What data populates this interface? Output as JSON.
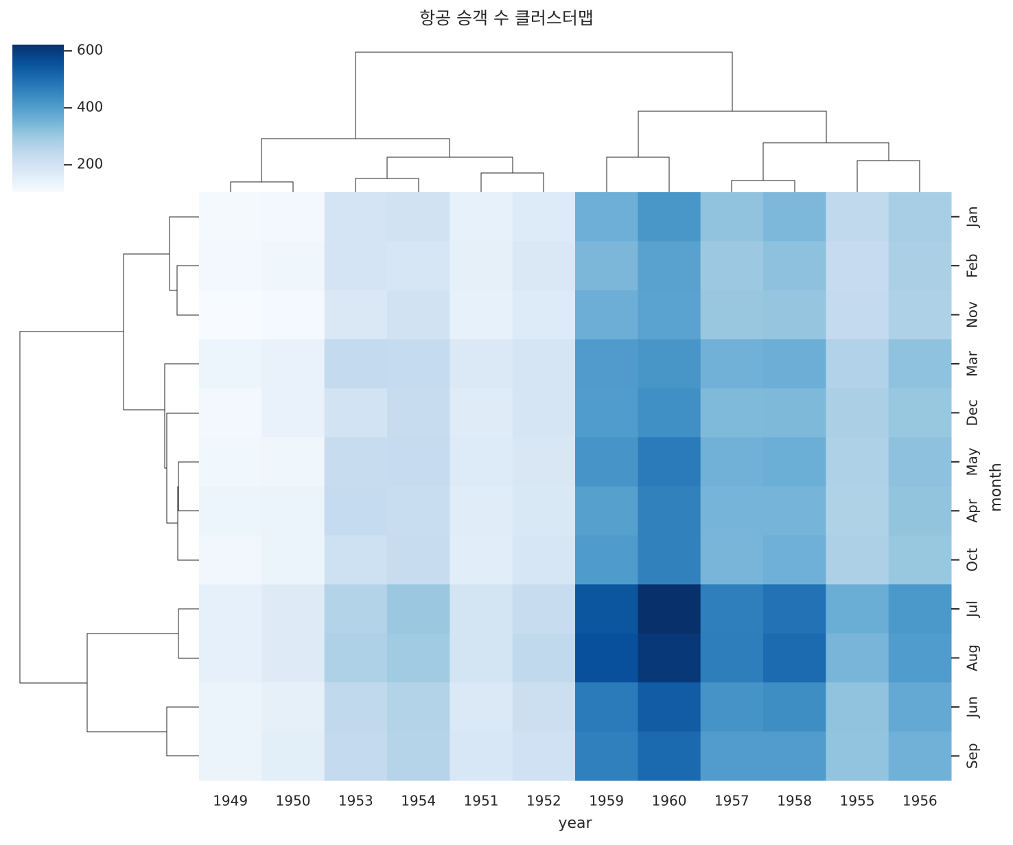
{
  "chart_data": {
    "type": "heatmap",
    "title": "항공 승객 수 클러스터맵",
    "xlabel": "year",
    "ylabel": "month",
    "colormap": "Blues",
    "columns": [
      "1949",
      "1950",
      "1953",
      "1954",
      "1951",
      "1952",
      "1959",
      "1960",
      "1957",
      "1958",
      "1955",
      "1956"
    ],
    "rows": [
      "Jan",
      "Feb",
      "Nov",
      "Mar",
      "Dec",
      "May",
      "Apr",
      "Oct",
      "Jul",
      "Aug",
      "Jun",
      "Sep"
    ],
    "values": [
      [
        112,
        115,
        196,
        204,
        145,
        171,
        360,
        417,
        315,
        340,
        242,
        284
      ],
      [
        118,
        126,
        196,
        188,
        150,
        180,
        342,
        391,
        301,
        318,
        233,
        277
      ],
      [
        104,
        114,
        180,
        203,
        146,
        172,
        362,
        390,
        305,
        310,
        237,
        271
      ],
      [
        132,
        141,
        236,
        235,
        178,
        193,
        406,
        419,
        356,
        362,
        267,
        317
      ],
      [
        118,
        140,
        201,
        229,
        166,
        194,
        405,
        432,
        336,
        337,
        278,
        306
      ],
      [
        121,
        125,
        229,
        234,
        172,
        183,
        420,
        472,
        355,
        363,
        270,
        318
      ],
      [
        129,
        135,
        235,
        227,
        163,
        181,
        396,
        461,
        348,
        348,
        269,
        313
      ],
      [
        119,
        133,
        211,
        229,
        162,
        191,
        407,
        461,
        347,
        359,
        274,
        306
      ],
      [
        148,
        170,
        264,
        302,
        199,
        230,
        548,
        622,
        465,
        491,
        364,
        413
      ],
      [
        148,
        170,
        272,
        293,
        199,
        242,
        559,
        606,
        467,
        505,
        347,
        405
      ],
      [
        135,
        149,
        243,
        264,
        178,
        218,
        472,
        535,
        422,
        435,
        315,
        374
      ],
      [
        136,
        158,
        237,
        259,
        184,
        209,
        463,
        508,
        404,
        404,
        312,
        355
      ]
    ],
    "clim": [
      104,
      622
    ],
    "cticks": [
      200,
      400,
      600
    ]
  }
}
